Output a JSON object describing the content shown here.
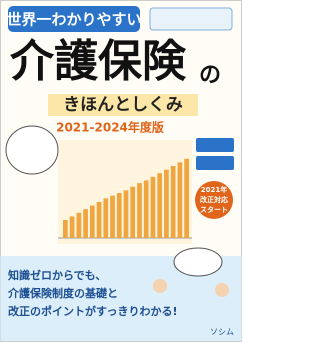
{
  "cover": {
    "tagline": "世界一わかりやすい",
    "title": "介護保険",
    "title_suffix": "の",
    "subtitle": "きほんとしくみ",
    "edition": "2021-2024年度版",
    "badge": [
      "2021年",
      "改正対応",
      "スタート"
    ],
    "blurb": [
      "知識ゼロからでも、",
      "介護保険制度の基礎と",
      "改正のポイントがすっきりわかる!"
    ],
    "publisher": "ソシム"
  },
  "chart": {
    "type": "bar",
    "color": "#f0a640",
    "ylim": [
      0,
      100
    ],
    "values": [
      20,
      24,
      28,
      32,
      36,
      40,
      44,
      47,
      50,
      53,
      57,
      61,
      64,
      68,
      72,
      76,
      80,
      84,
      88
    ]
  }
}
